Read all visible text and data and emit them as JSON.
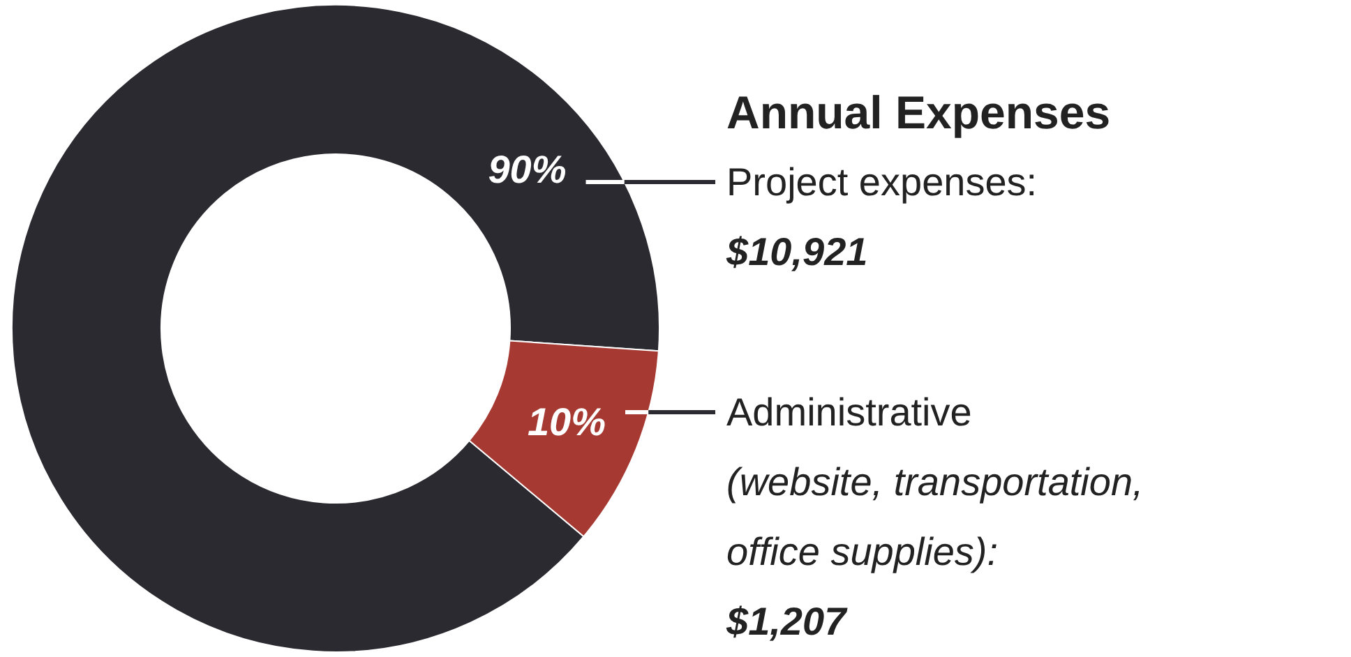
{
  "chart_data": {
    "type": "donut",
    "title": "Annual Expenses",
    "categories": [
      "Project expenses:\n$10,921",
      "Administrative\n(website, transportation,\noffice supplies):\n$1,207"
    ],
    "values": [
      90,
      10
    ],
    "colors": [
      "#2b2a30",
      "#a63a32"
    ],
    "value_labels": [
      "90%",
      "10%"
    ]
  }
}
